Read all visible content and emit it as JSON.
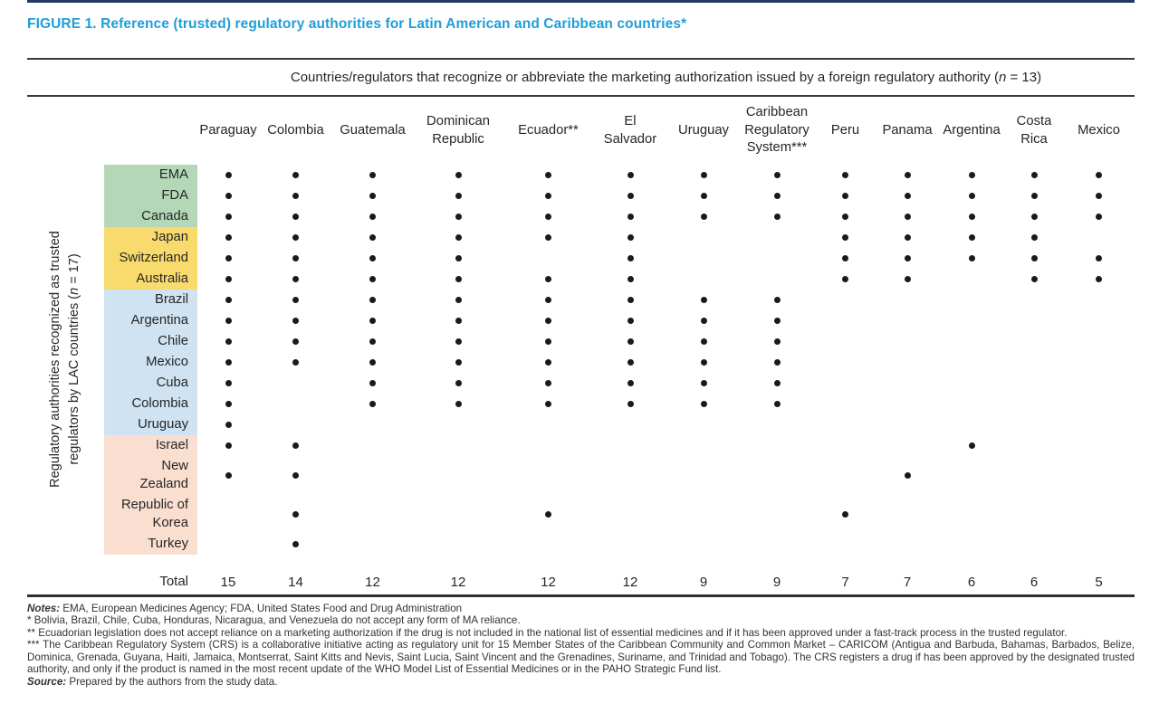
{
  "figure": {
    "title": "FIGURE 1. Reference (trusted) regulatory authorities for Latin American and Caribbean countries*",
    "title_color": "#1f9ed8"
  },
  "column_group_header": {
    "pre": "Countries/regulators that recognize or abbreviate the marketing authorization issued by a foreign regulatory authority (",
    "var": "n",
    "post": " = 13)"
  },
  "row_group_header": {
    "line1": "Regulatory authorities recognized as trusted",
    "line2_pre": "regulators by LAC countries (",
    "var": "n",
    "post": " = 17)"
  },
  "dot_color": "#1a1a1a",
  "columns": [
    {
      "label": "Paraguay",
      "total": "15"
    },
    {
      "label": "Colombia",
      "total": "14"
    },
    {
      "label": "Guatemala",
      "total": "12"
    },
    {
      "label": "Dominican\nRepublic",
      "total": "12"
    },
    {
      "label": "Ecuador**",
      "total": "12"
    },
    {
      "label": "El\nSalvador",
      "total": "12"
    },
    {
      "label": "Uruguay",
      "total": "9"
    },
    {
      "label": "Caribbean\nRegulatory\nSystem***",
      "total": "9"
    },
    {
      "label": "Peru",
      "total": "7"
    },
    {
      "label": "Panama",
      "total": "7"
    },
    {
      "label": "Argentina",
      "total": "6"
    },
    {
      "label": "Costa\nRica",
      "total": "6"
    },
    {
      "label": "Mexico",
      "total": "5"
    }
  ],
  "row_groups": [
    {
      "name": "group-green",
      "color": "#b4d8b7",
      "rows": [
        {
          "label": "EMA",
          "dots": [
            1,
            1,
            1,
            1,
            1,
            1,
            1,
            1,
            1,
            1,
            1,
            1,
            1
          ]
        },
        {
          "label": "FDA",
          "dots": [
            1,
            1,
            1,
            1,
            1,
            1,
            1,
            1,
            1,
            1,
            1,
            1,
            1
          ]
        },
        {
          "label": "Canada",
          "dots": [
            1,
            1,
            1,
            1,
            1,
            1,
            1,
            1,
            1,
            1,
            1,
            1,
            1
          ]
        }
      ]
    },
    {
      "name": "group-yellow",
      "color": "#f8da6d",
      "rows": [
        {
          "label": "Japan",
          "dots": [
            1,
            1,
            1,
            1,
            1,
            1,
            0,
            0,
            1,
            1,
            1,
            1,
            0
          ]
        },
        {
          "label": "Switzerland",
          "dots": [
            1,
            1,
            1,
            1,
            0,
            1,
            0,
            0,
            1,
            1,
            1,
            1,
            1
          ]
        },
        {
          "label": "Australia",
          "dots": [
            1,
            1,
            1,
            1,
            1,
            1,
            0,
            0,
            1,
            1,
            0,
            1,
            1
          ]
        }
      ]
    },
    {
      "name": "group-blue",
      "color": "#cfe3f2",
      "rows": [
        {
          "label": "Brazil",
          "dots": [
            1,
            1,
            1,
            1,
            1,
            1,
            1,
            1,
            0,
            0,
            0,
            0,
            0
          ]
        },
        {
          "label": "Argentina",
          "dots": [
            1,
            1,
            1,
            1,
            1,
            1,
            1,
            1,
            0,
            0,
            0,
            0,
            0
          ]
        },
        {
          "label": "Chile",
          "dots": [
            1,
            1,
            1,
            1,
            1,
            1,
            1,
            1,
            0,
            0,
            0,
            0,
            0
          ]
        },
        {
          "label": "Mexico",
          "dots": [
            1,
            1,
            1,
            1,
            1,
            1,
            1,
            1,
            0,
            0,
            0,
            0,
            0
          ]
        },
        {
          "label": "Cuba",
          "dots": [
            1,
            0,
            1,
            1,
            1,
            1,
            1,
            1,
            0,
            0,
            0,
            0,
            0
          ]
        },
        {
          "label": "Colombia",
          "dots": [
            1,
            0,
            1,
            1,
            1,
            1,
            1,
            1,
            0,
            0,
            0,
            0,
            0
          ]
        },
        {
          "label": "Uruguay",
          "dots": [
            1,
            0,
            0,
            0,
            0,
            0,
            0,
            0,
            0,
            0,
            0,
            0,
            0
          ]
        }
      ]
    },
    {
      "name": "group-peach",
      "color": "#fadfd1",
      "rows": [
        {
          "label": "Israel",
          "dots": [
            1,
            1,
            0,
            0,
            0,
            0,
            0,
            0,
            0,
            0,
            1,
            0,
            0
          ]
        },
        {
          "label": "New\nZealand",
          "tall": true,
          "dots": [
            1,
            1,
            0,
            0,
            0,
            0,
            0,
            0,
            0,
            1,
            0,
            0,
            0
          ]
        },
        {
          "label": "Republic of\nKorea",
          "tall": true,
          "dots": [
            0,
            1,
            0,
            0,
            1,
            0,
            0,
            0,
            1,
            0,
            0,
            0,
            0
          ]
        },
        {
          "label": "Turkey",
          "dots": [
            0,
            1,
            0,
            0,
            0,
            0,
            0,
            0,
            0,
            0,
            0,
            0,
            0
          ]
        }
      ]
    }
  ],
  "total_label": "Total",
  "notes": [
    {
      "lead": "Notes:",
      "text": " EMA, European Medicines Agency; FDA, United States Food and Drug Administration"
    },
    {
      "lead": "",
      "text": "* Bolivia, Brazil, Chile, Cuba, Honduras, Nicaragua, and Venezuela do not accept any form of MA reliance."
    },
    {
      "lead": "",
      "text": "** Ecuadorian legislation does not accept reliance on a marketing authorization if the drug is not included in the national list of essential medicines and if it has been approved under a fast-track process in the trusted regulator."
    },
    {
      "lead": "",
      "text": "*** The Caribbean Regulatory System (CRS) is a collaborative initiative acting as regulatory unit for 15 Member States of the Caribbean Community and Common Market – CARICOM (Antigua and Barbuda, Bahamas, Barbados, Belize, Dominica, Grenada, Guyana, Haiti, Jamaica, Montserrat, Saint Kitts and Nevis, Saint Lucia, Saint Vincent and the Grenadines, Suriname, and Trinidad and Tobago). The CRS registers a drug if has been approved by the designated trusted authority, and only if the product is named in the most recent update of the WHO Model List of Essential Medicines or in the PAHO Strategic Fund list."
    },
    {
      "lead": "Source:",
      "text": " Prepared by the authors from the study data."
    }
  ]
}
